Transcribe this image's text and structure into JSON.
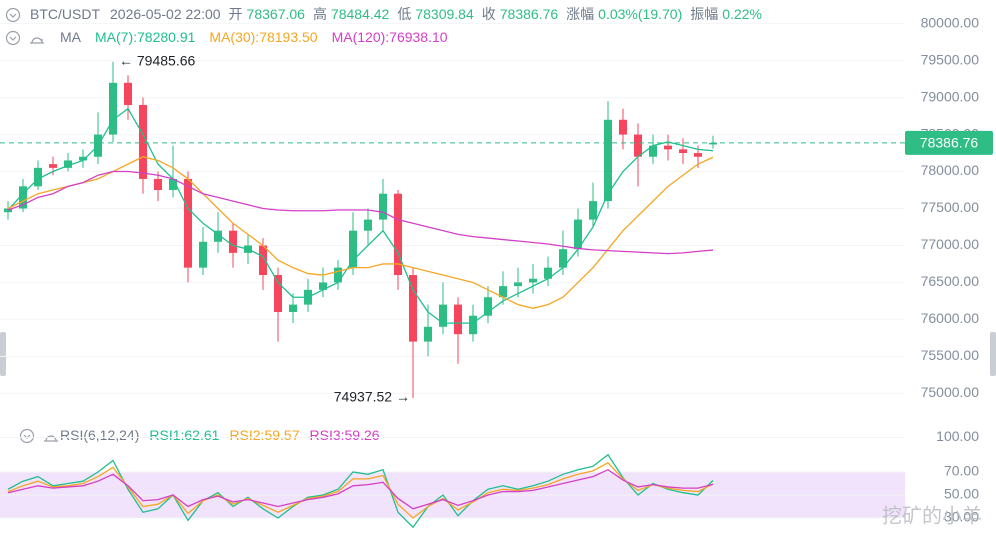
{
  "header": {
    "symbol": "BTC/USDT",
    "time": "2026-05-02 22:00",
    "stats": [
      {
        "label": "开",
        "value": "78367.06"
      },
      {
        "label": "高",
        "value": "78484.42"
      },
      {
        "label": "低",
        "value": "78309.84"
      },
      {
        "label": "收",
        "value": "78386.76"
      },
      {
        "label": "涨幅",
        "value": "0.03%(19.70)"
      },
      {
        "label": "振幅",
        "value": "0.22%"
      }
    ]
  },
  "chart_data": [
    {
      "type": "candlestick",
      "title": "MA",
      "up_color": "#2ebd85",
      "down_color": "#f6465d",
      "open": [
        77450,
        77500,
        77800,
        78100,
        78050,
        78150,
        78200,
        78500,
        79200,
        78900,
        77900,
        77750,
        77900,
        76700,
        77050,
        77200,
        76900,
        77000,
        76600,
        76100,
        76200,
        76400,
        76500,
        76700,
        77200,
        77350,
        77700,
        76600,
        75700,
        75900,
        76200,
        75800,
        76050,
        76300,
        76450,
        76500,
        76550,
        76700,
        76950,
        77350,
        77600,
        78700,
        78500,
        78200,
        78350,
        78300,
        78250,
        78367.06
      ],
      "high": [
        77600,
        77900,
        78150,
        78200,
        78250,
        78300,
        78800,
        79485.66,
        79300,
        79000,
        78000,
        78350,
        78000,
        77250,
        77450,
        77300,
        77150,
        77100,
        76700,
        76350,
        76550,
        76700,
        76800,
        77450,
        77500,
        77900,
        77750,
        76700,
        76200,
        76500,
        76300,
        76200,
        76450,
        76650,
        76700,
        76750,
        76850,
        77200,
        77500,
        77850,
        78950,
        78850,
        78650,
        78500,
        78500,
        78450,
        78350,
        78484.42
      ],
      "low": [
        77350,
        77450,
        77750,
        77950,
        78000,
        78050,
        78100,
        78400,
        78700,
        77700,
        77600,
        77650,
        76500,
        76600,
        76900,
        76700,
        76750,
        76400,
        75700,
        75950,
        76100,
        76300,
        76400,
        76600,
        77000,
        77200,
        76400,
        74937.52,
        75500,
        75800,
        75400,
        75700,
        75950,
        76200,
        76300,
        76350,
        76450,
        76600,
        76850,
        77250,
        77500,
        78300,
        77800,
        78100,
        78150,
        78100,
        78050,
        78309.84
      ],
      "close": [
        77500,
        77800,
        78050,
        78050,
        78150,
        78200,
        78500,
        79200,
        78900,
        77900,
        77750,
        77900,
        76700,
        77050,
        77200,
        76900,
        77000,
        76600,
        76100,
        76200,
        76400,
        76500,
        76700,
        77200,
        77350,
        77700,
        76600,
        75700,
        75900,
        76200,
        75800,
        76050,
        76300,
        76450,
        76500,
        76550,
        76700,
        76950,
        77350,
        77600,
        78700,
        78500,
        78200,
        78350,
        78300,
        78250,
        78200,
        78386.76
      ],
      "series": [
        {
          "name": "MA(7):78280.91",
          "color": "#1fbf8f",
          "values": [
            77480,
            77700,
            77900,
            78000,
            78080,
            78150,
            78350,
            78700,
            78850,
            78500,
            78100,
            77900,
            77500,
            77300,
            77150,
            77000,
            76950,
            76850,
            76500,
            76300,
            76300,
            76400,
            76500,
            76800,
            77000,
            77200,
            76900,
            76400,
            76100,
            75950,
            75950,
            75950,
            76100,
            76250,
            76350,
            76450,
            76550,
            76700,
            76950,
            77250,
            77700,
            78000,
            78200,
            78350,
            78400,
            78350,
            78300,
            78280.91
          ]
        },
        {
          "name": "MA(30):78193.50",
          "color": "#f5a623",
          "values": [
            77500,
            77600,
            77700,
            77750,
            77800,
            77850,
            77900,
            78000,
            78100,
            78200,
            78150,
            78050,
            77900,
            77700,
            77500,
            77300,
            77150,
            77000,
            76800,
            76700,
            76620,
            76600,
            76650,
            76700,
            76700,
            76750,
            76750,
            76700,
            76650,
            76600,
            76550,
            76500,
            76400,
            76300,
            76200,
            76150,
            76200,
            76300,
            76500,
            76700,
            76950,
            77200,
            77400,
            77600,
            77800,
            77950,
            78100,
            78193.5
          ]
        },
        {
          "name": "MA(120):76938.10",
          "color": "#d43fc6",
          "values": [
            77480,
            77550,
            77650,
            77700,
            77800,
            77850,
            77950,
            78000,
            78000,
            77980,
            77950,
            77900,
            77800,
            77700,
            77650,
            77600,
            77550,
            77500,
            77480,
            77470,
            77470,
            77470,
            77480,
            77480,
            77480,
            77450,
            77350,
            77300,
            77250,
            77200,
            77150,
            77120,
            77100,
            77080,
            77060,
            77040,
            77020,
            76990,
            76960,
            76940,
            76930,
            76920,
            76910,
            76900,
            76890,
            76900,
            76920,
            76938.1
          ]
        }
      ],
      "ylim": [
        74680,
        80320
      ],
      "yticks": [
        {
          "value": 75000,
          "label": "75000.00"
        },
        {
          "value": 75500,
          "label": "75500.00"
        },
        {
          "value": 76000,
          "label": "76000.00"
        },
        {
          "value": 76500,
          "label": "76500.00"
        },
        {
          "value": 77000,
          "label": "77000.00"
        },
        {
          "value": 77500,
          "label": "77500.00"
        },
        {
          "value": 78000,
          "label": "78000.00"
        },
        {
          "value": 78500,
          "label": "78500.00"
        },
        {
          "value": 79000,
          "label": "79000.00"
        },
        {
          "value": 79500,
          "label": "79500.00"
        },
        {
          "value": 80000,
          "label": "80000.00"
        }
      ],
      "last_price": 78386.76,
      "max_label": {
        "index": 7,
        "value": 79485.66,
        "label": "← 79485.66"
      },
      "min_label": {
        "index": 27,
        "value": 74937.52,
        "label": "74937.52 →"
      },
      "grid": true
    },
    {
      "type": "line",
      "title": "RSI(6,12,24)",
      "series": [
        {
          "name": "RSI1:62.61",
          "color": "#1fbf8f",
          "values": [
            55,
            62,
            66,
            58,
            60,
            62,
            70,
            80,
            55,
            35,
            38,
            50,
            28,
            45,
            52,
            40,
            48,
            38,
            30,
            40,
            48,
            50,
            55,
            70,
            68,
            72,
            35,
            22,
            40,
            50,
            32,
            45,
            55,
            58,
            55,
            58,
            62,
            68,
            72,
            75,
            85,
            65,
            50,
            60,
            55,
            52,
            50,
            62.61
          ]
        },
        {
          "name": "RSI2:59.57",
          "color": "#f5a623",
          "values": [
            53,
            58,
            62,
            57,
            58,
            60,
            66,
            74,
            57,
            40,
            42,
            50,
            34,
            45,
            50,
            42,
            47,
            41,
            35,
            41,
            47,
            49,
            53,
            64,
            64,
            67,
            42,
            30,
            40,
            47,
            37,
            44,
            52,
            55,
            54,
            56,
            59,
            64,
            68,
            71,
            78,
            64,
            54,
            59,
            56,
            54,
            53,
            59.57
          ]
        },
        {
          "name": "RSI3:59.26",
          "color": "#d43fc6",
          "values": [
            52,
            55,
            58,
            56,
            57,
            58,
            62,
            68,
            58,
            45,
            46,
            50,
            40,
            46,
            49,
            44,
            46,
            43,
            40,
            43,
            46,
            48,
            51,
            58,
            59,
            61,
            47,
            38,
            42,
            46,
            41,
            45,
            50,
            53,
            53,
            54,
            57,
            60,
            63,
            66,
            72,
            63,
            57,
            59,
            57,
            56,
            56,
            59.26
          ]
        }
      ],
      "band": [
        30,
        70
      ],
      "band_color": "#f1e3fb",
      "ylim": [
        10,
        110
      ],
      "yticks": [
        {
          "value": 30,
          "label": "30.00"
        },
        {
          "value": 50,
          "label": "50.00"
        },
        {
          "value": 70,
          "label": "70.00"
        },
        {
          "value": 100,
          "label": "100.00"
        }
      ]
    }
  ],
  "watermark": "挖矿的小羊"
}
